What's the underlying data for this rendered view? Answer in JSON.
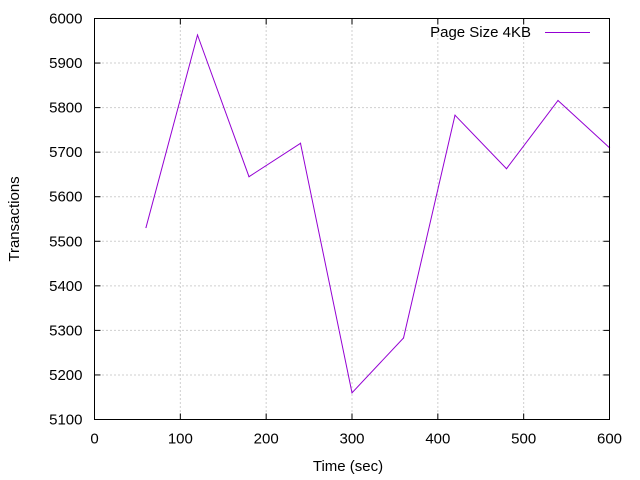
{
  "chart_data": {
    "type": "line",
    "title": "",
    "xlabel": "Time (sec)",
    "ylabel": "Transactions",
    "xlim": [
      0,
      600
    ],
    "ylim": [
      5100,
      6000
    ],
    "xticks": [
      0,
      100,
      200,
      300,
      400,
      500,
      600
    ],
    "yticks": [
      5100,
      5200,
      5300,
      5400,
      5500,
      5600,
      5700,
      5800,
      5900,
      6000
    ],
    "grid": true,
    "legend_position": "top-right",
    "series": [
      {
        "name": "Page Size 4KB",
        "color": "#9400d3",
        "x": [
          60,
          120,
          180,
          240,
          300,
          360,
          420,
          480,
          540,
          600
        ],
        "y": [
          5531,
          5963,
          5645,
          5720,
          5160,
          5283,
          5783,
          5663,
          5816,
          5710
        ]
      }
    ]
  }
}
